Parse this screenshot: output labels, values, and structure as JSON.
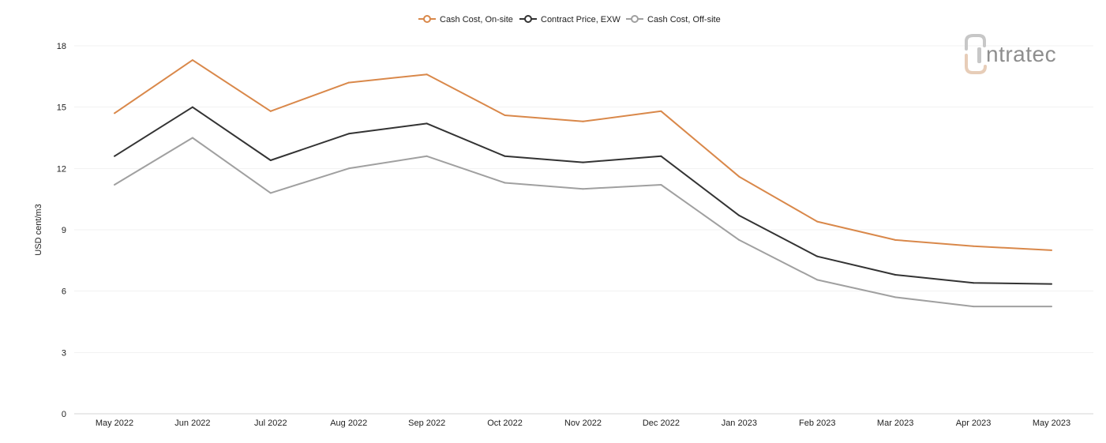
{
  "logo": {
    "text": "ntratec"
  },
  "chart_data": {
    "type": "line",
    "title": "",
    "xlabel": "",
    "ylabel": "USD cent/m3",
    "ylim": [
      0,
      18
    ],
    "yticks": [
      0,
      3,
      6,
      9,
      12,
      15,
      18
    ],
    "grid": true,
    "legend_position": "top-center",
    "categories": [
      "May 2022",
      "Jun 2022",
      "Jul 2022",
      "Aug 2022",
      "Sep 2022",
      "Oct 2022",
      "Nov 2022",
      "Dec 2022",
      "Jan 2023",
      "Feb 2023",
      "Mar 2023",
      "Apr 2023",
      "May 2023"
    ],
    "series": [
      {
        "name": "Cash Cost, On-site",
        "color": "#d9884a",
        "values": [
          14.7,
          17.3,
          14.8,
          16.2,
          16.6,
          14.6,
          14.3,
          14.8,
          11.6,
          9.4,
          8.5,
          8.2,
          8.0
        ]
      },
      {
        "name": "Contract Price, EXW",
        "color": "#333333",
        "values": [
          12.6,
          15.0,
          12.4,
          13.7,
          14.2,
          12.6,
          12.3,
          12.6,
          9.7,
          7.7,
          6.8,
          6.4,
          6.35
        ]
      },
      {
        "name": "Cash Cost, Off-site",
        "color": "#a0a0a0",
        "values": [
          11.2,
          13.5,
          10.8,
          12.0,
          12.6,
          11.3,
          11.0,
          11.2,
          8.5,
          6.55,
          5.7,
          5.25,
          5.25
        ]
      }
    ]
  }
}
